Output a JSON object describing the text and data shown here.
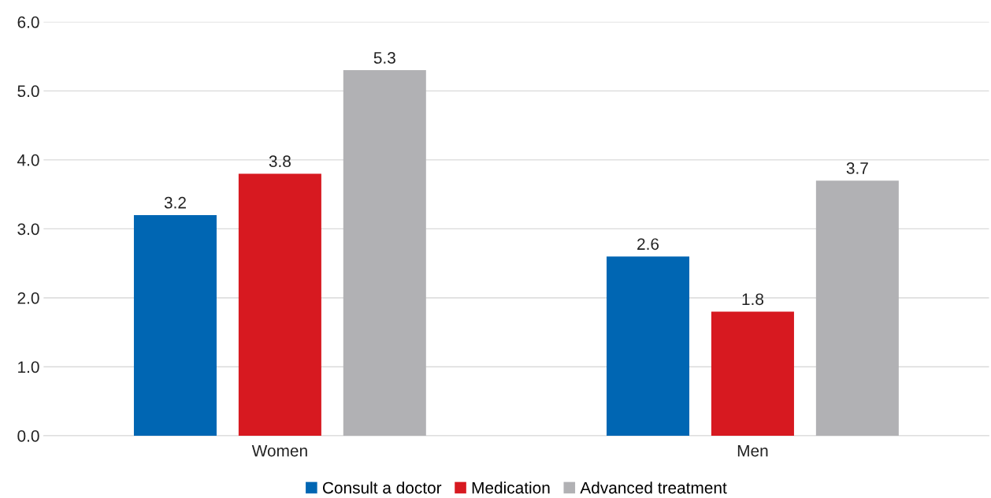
{
  "chart_data": {
    "type": "bar",
    "categories": [
      "Women",
      "Men"
    ],
    "series": [
      {
        "name": "Consult a doctor",
        "color": "#0066b3",
        "values": [
          3.2,
          2.6
        ]
      },
      {
        "name": "Medication",
        "color": "#d71920",
        "values": [
          3.8,
          1.8
        ]
      },
      {
        "name": "Advanced treatment",
        "color": "#b1b1b4",
        "values": [
          5.3,
          3.7
        ]
      }
    ],
    "ylim": [
      0,
      6
    ],
    "yticks": [
      {
        "value": 0,
        "label": "0.0"
      },
      {
        "value": 1,
        "label": "1.0"
      },
      {
        "value": 2,
        "label": "2.0"
      },
      {
        "value": 3,
        "label": "3.0"
      },
      {
        "value": 4,
        "label": "4.0"
      },
      {
        "value": 5,
        "label": "5.0"
      },
      {
        "value": 6,
        "label": "6.0"
      }
    ],
    "grid": "y",
    "legend": "bottom",
    "data_labels": true
  }
}
